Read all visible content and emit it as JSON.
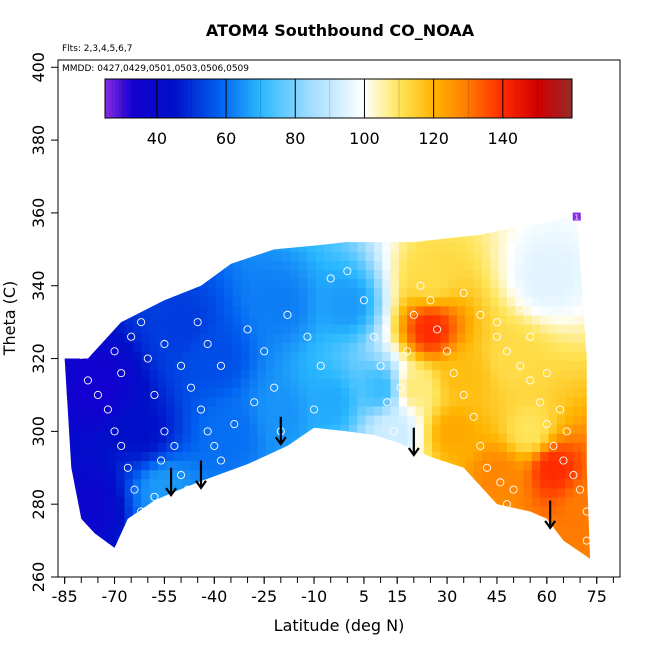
{
  "chart_data": {
    "type": "heatmap",
    "title": "ATOM4 Southbound CO_NOAA",
    "annotations": [
      "Flts: 2,3,4,5,6,7",
      "MMDD: 0427,0429,0501,0503,0506,0509"
    ],
    "xlabel": "Latitude (deg N)",
    "ylabel": "Theta (C)",
    "xlim": [
      -87,
      82
    ],
    "ylim": [
      260,
      402
    ],
    "x_ticks": [
      -85,
      -70,
      -55,
      -40,
      -25,
      -10,
      5,
      15,
      30,
      45,
      60,
      75
    ],
    "y_ticks": [
      260,
      280,
      300,
      320,
      340,
      360,
      380,
      400
    ],
    "colorbar": {
      "range": [
        25,
        160
      ],
      "ticks": [
        40,
        60,
        80,
        100,
        120,
        140
      ],
      "stops": [
        {
          "value": 25,
          "color": "#8a2be2"
        },
        {
          "value": 33,
          "color": "#1400d2"
        },
        {
          "value": 45,
          "color": "#0010c8"
        },
        {
          "value": 58,
          "color": "#0060f0"
        },
        {
          "value": 70,
          "color": "#2ab8ff"
        },
        {
          "value": 84,
          "color": "#9edcff"
        },
        {
          "value": 100,
          "color": "#ffffff"
        },
        {
          "value": 110,
          "color": "#ffe55a"
        },
        {
          "value": 120,
          "color": "#ffb400"
        },
        {
          "value": 130,
          "color": "#ff7a00"
        },
        {
          "value": 140,
          "color": "#ff2a00"
        },
        {
          "value": 150,
          "color": "#d20000"
        },
        {
          "value": 160,
          "color": "#962a2a"
        }
      ]
    },
    "field_keypoints": [
      {
        "lat": -78,
        "theta": 280,
        "co": 38
      },
      {
        "lat": -75,
        "theta": 312,
        "co": 34
      },
      {
        "lat": -62,
        "theta": 300,
        "co": 45
      },
      {
        "lat": -55,
        "theta": 284,
        "co": 66
      },
      {
        "lat": -50,
        "theta": 330,
        "co": 52
      },
      {
        "lat": -40,
        "theta": 320,
        "co": 55
      },
      {
        "lat": -35,
        "theta": 300,
        "co": 60
      },
      {
        "lat": -20,
        "theta": 305,
        "co": 65
      },
      {
        "lat": -20,
        "theta": 335,
        "co": 62
      },
      {
        "lat": -5,
        "theta": 308,
        "co": 68
      },
      {
        "lat": 0,
        "theta": 335,
        "co": 66
      },
      {
        "lat": 10,
        "theta": 312,
        "co": 72
      },
      {
        "lat": 14,
        "theta": 300,
        "co": 92
      },
      {
        "lat": 20,
        "theta": 312,
        "co": 108
      },
      {
        "lat": 25,
        "theta": 342,
        "co": 112
      },
      {
        "lat": 25,
        "theta": 328,
        "co": 140
      },
      {
        "lat": 32,
        "theta": 300,
        "co": 122
      },
      {
        "lat": 35,
        "theta": 315,
        "co": 118
      },
      {
        "lat": 45,
        "theta": 288,
        "co": 128
      },
      {
        "lat": 50,
        "theta": 320,
        "co": 112
      },
      {
        "lat": 55,
        "theta": 300,
        "co": 110
      },
      {
        "lat": 60,
        "theta": 342,
        "co": 95
      },
      {
        "lat": 62,
        "theta": 290,
        "co": 140
      },
      {
        "lat": 72,
        "theta": 280,
        "co": 130
      }
    ],
    "coverage_top": [
      [
        -85,
        320
      ],
      [
        -78,
        320
      ],
      [
        -68,
        330
      ],
      [
        -55,
        336
      ],
      [
        -44,
        340
      ],
      [
        -35,
        346
      ],
      [
        -22,
        350
      ],
      [
        -10,
        351
      ],
      [
        0,
        352
      ],
      [
        10,
        352
      ],
      [
        20,
        352
      ],
      [
        30,
        353
      ],
      [
        40,
        354
      ],
      [
        50,
        356
      ],
      [
        58,
        357
      ],
      [
        66,
        359
      ],
      [
        69,
        360
      ],
      [
        70,
        347
      ],
      [
        72,
        320
      ],
      [
        72,
        290
      ],
      [
        73,
        265
      ]
    ],
    "coverage_bottom": [
      [
        -85,
        320
      ],
      [
        -83,
        290
      ],
      [
        -80,
        276
      ],
      [
        -76,
        272
      ],
      [
        -70,
        268
      ],
      [
        -66,
        276
      ],
      [
        -58,
        281
      ],
      [
        -53,
        283
      ],
      [
        -45,
        286
      ],
      [
        -30,
        291
      ],
      [
        -18,
        296
      ],
      [
        -10,
        301
      ],
      [
        0,
        300
      ],
      [
        8,
        299
      ],
      [
        15,
        297
      ],
      [
        25,
        293
      ],
      [
        35,
        290
      ],
      [
        45,
        280
      ],
      [
        55,
        278
      ],
      [
        60,
        276
      ],
      [
        65,
        270
      ],
      [
        73,
        265
      ]
    ],
    "flight_points": [
      [
        -80,
        321
      ],
      [
        -78,
        314
      ],
      [
        -75,
        310
      ],
      [
        -72,
        306
      ],
      [
        -70,
        300
      ],
      [
        -68,
        296
      ],
      [
        -66,
        290
      ],
      [
        -64,
        284
      ],
      [
        -62,
        278
      ],
      [
        -60,
        274
      ],
      [
        -58,
        282
      ],
      [
        -56,
        292
      ],
      [
        -72,
        330
      ],
      [
        -70,
        322
      ],
      [
        -68,
        316
      ],
      [
        -65,
        326
      ],
      [
        -62,
        330
      ],
      [
        -60,
        320
      ],
      [
        -58,
        310
      ],
      [
        -55,
        300
      ],
      [
        -52,
        296
      ],
      [
        -50,
        288
      ],
      [
        -48,
        284
      ],
      [
        -55,
        324
      ],
      [
        -50,
        318
      ],
      [
        -47,
        312
      ],
      [
        -44,
        306
      ],
      [
        -42,
        300
      ],
      [
        -40,
        296
      ],
      [
        -38,
        292
      ],
      [
        -45,
        330
      ],
      [
        -42,
        324
      ],
      [
        -38,
        318
      ],
      [
        -30,
        328
      ],
      [
        -25,
        322
      ],
      [
        -22,
        312
      ],
      [
        -20,
        300
      ],
      [
        -28,
        308
      ],
      [
        -34,
        302
      ],
      [
        -18,
        332
      ],
      [
        -12,
        326
      ],
      [
        -8,
        318
      ],
      [
        -10,
        306
      ],
      [
        -5,
        342
      ],
      [
        0,
        344
      ],
      [
        5,
        336
      ],
      [
        8,
        326
      ],
      [
        10,
        318
      ],
      [
        12,
        308
      ],
      [
        14,
        300
      ],
      [
        16,
        312
      ],
      [
        18,
        322
      ],
      [
        20,
        332
      ],
      [
        22,
        340
      ],
      [
        25,
        336
      ],
      [
        27,
        328
      ],
      [
        30,
        322
      ],
      [
        32,
        316
      ],
      [
        35,
        310
      ],
      [
        38,
        304
      ],
      [
        40,
        296
      ],
      [
        42,
        290
      ],
      [
        46,
        286
      ],
      [
        48,
        280
      ],
      [
        50,
        284
      ],
      [
        45,
        326
      ],
      [
        48,
        322
      ],
      [
        52,
        318
      ],
      [
        55,
        314
      ],
      [
        58,
        308
      ],
      [
        60,
        302
      ],
      [
        62,
        296
      ],
      [
        65,
        292
      ],
      [
        68,
        288
      ],
      [
        70,
        284
      ],
      [
        72,
        278
      ],
      [
        72,
        270
      ],
      [
        35,
        338
      ],
      [
        40,
        332
      ],
      [
        45,
        330
      ],
      [
        52,
        334
      ],
      [
        55,
        326
      ],
      [
        60,
        316
      ],
      [
        64,
        306
      ],
      [
        66,
        300
      ]
    ],
    "arrows": [
      {
        "lat": -53,
        "theta": 288
      },
      {
        "lat": -44,
        "theta": 290
      },
      {
        "lat": -20,
        "theta": 302
      },
      {
        "lat": 20,
        "theta": 299
      },
      {
        "lat": 61,
        "theta": 279
      }
    ],
    "marker": {
      "lat": 69,
      "theta": 359,
      "label": "1"
    }
  }
}
